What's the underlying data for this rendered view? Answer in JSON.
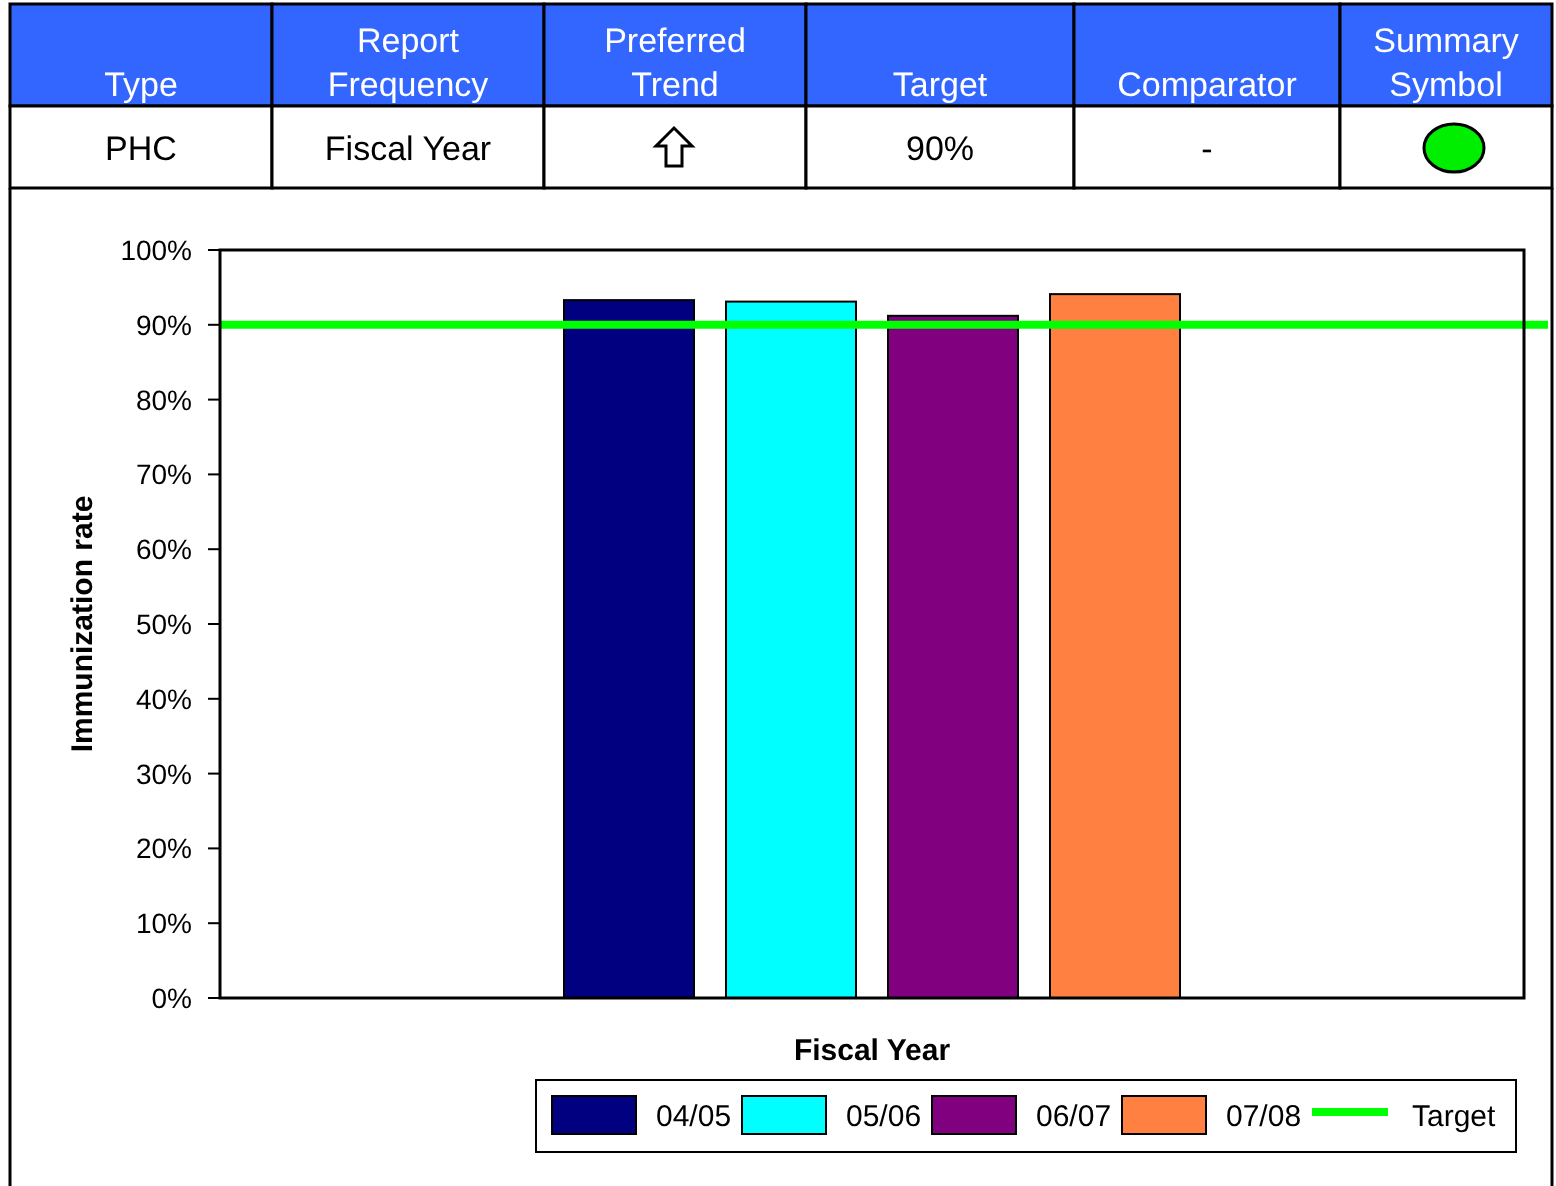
{
  "chart_data": {
    "type": "bar",
    "xlabel": "Fiscal Year",
    "ylabel": "Immunization rate",
    "annotations": [
      "Type",
      "Report Frequency",
      "Preferred Trend",
      "Target",
      "Comparator",
      "Summary Symbol",
      "PHC",
      "Fiscal Year",
      "90%",
      "-"
    ],
    "categories": [
      null
    ],
    "series": [
      {
        "name": "04/05",
        "color": "#000080",
        "values": [
          93.3
        ]
      },
      {
        "name": "05/06",
        "color": "#00ffff",
        "values": [
          93.1
        ]
      },
      {
        "name": "06/07",
        "color": "#800080",
        "values": [
          91.2
        ]
      },
      {
        "name": "07/08",
        "color": "#ff8040",
        "values": [
          94.1
        ]
      }
    ],
    "ylim": [
      0,
      100
    ],
    "yticks": [
      {
        "value": 0,
        "label": "0%"
      },
      {
        "value": 10,
        "label": "10%"
      },
      {
        "value": 20,
        "label": "20%"
      },
      {
        "value": 30,
        "label": "30%"
      },
      {
        "value": 40,
        "label": "40%"
      },
      {
        "value": 50,
        "label": "50%"
      },
      {
        "value": 60,
        "label": "60%"
      },
      {
        "value": 70,
        "label": "70%"
      },
      {
        "value": 80,
        "label": "80%"
      },
      {
        "value": 90,
        "label": "90%"
      },
      {
        "value": 100,
        "label": "100%"
      }
    ],
    "ref_lines": [
      {
        "axis": "y",
        "value": 90,
        "label": "Target",
        "color": "#00ff00"
      }
    ],
    "legend": "bottom",
    "grid": false
  }
}
